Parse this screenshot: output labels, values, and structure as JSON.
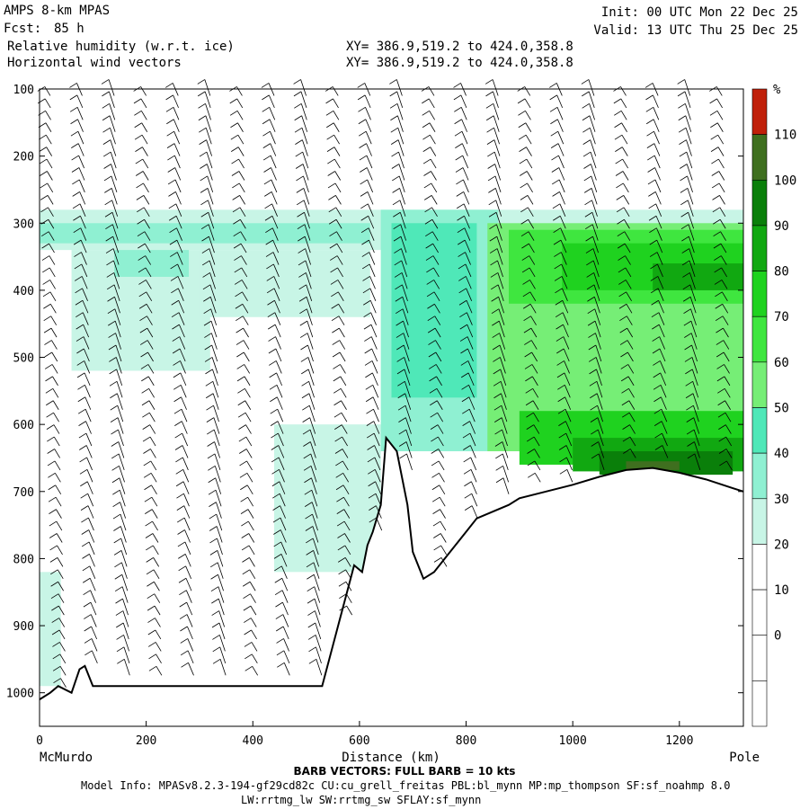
{
  "header": {
    "model": "AMPS 8-km MPAS",
    "fcst_label": "Fcst:",
    "fcst_value": "85 h",
    "field1": "Relative humidity (w.r.t. ice)",
    "field2": "Horizontal wind vectors",
    "init": "Init: 00 UTC Mon 22 Dec 25",
    "valid": "Valid: 13 UTC Thu 25 Dec 25",
    "xy1": "XY= 386.9,519.2 to 424.0,358.8",
    "xy2": "XY= 386.9,519.2 to 424.0,358.8"
  },
  "footer": {
    "barb_note": "BARB VECTORS: FULL BARB = 10 kts",
    "model_info_1": "Model Info: MPASv8.2.3-194-gf29cd82c CU:cu_grell_freitas PBL:bl_mynn MP:mp_thompson SF:sf_noahmp 8.0",
    "model_info_2": "LW:rrtmg_lw SW:rrtmg_sw SFLAY:sf_mynn"
  },
  "colors": {
    "rh_30": "#c8f5e6",
    "rh_40": "#8ff0d2",
    "rh_50": "#4fe8b8",
    "rh_60": "#76ee76",
    "rh_70": "#3fe63f",
    "rh_80": "#1fd21f",
    "rh_90": "#11a811",
    "rh_100": "#0a7f0a",
    "rh_110": "#3f6f1f",
    "rh_top": "#c0200a",
    "terrain_line": "#000000"
  },
  "chart_data": {
    "type": "heatmap",
    "title": "Relative humidity (w.r.t. ice)",
    "xlabel": "Distance (km)",
    "ylabel": "",
    "x_start_label": "McMurdo",
    "x_end_label": "Pole",
    "xlim": [
      0,
      1320
    ],
    "ylim": [
      1050,
      100
    ],
    "x_ticks": [
      "0",
      "200",
      "400",
      "600",
      "800",
      "1000",
      "1200"
    ],
    "y_ticks": [
      "100",
      "200",
      "300",
      "400",
      "500",
      "600",
      "700",
      "800",
      "900",
      "1000"
    ],
    "colorbar": {
      "unit": "%",
      "labels": [
        "110",
        "100",
        "90",
        "80",
        "70",
        "60",
        "50",
        "40",
        "30",
        "20",
        "10",
        "0"
      ],
      "bands": [
        "#c0200a",
        "#3f6f1f",
        "#0a7f0a",
        "#11a811",
        "#1fd21f",
        "#3fe63f",
        "#76ee76",
        "#4fe8b8",
        "#8ff0d2",
        "#c8f5e6",
        "#ffffff",
        "#ffffff",
        "#ffffff",
        "#ffffff"
      ]
    },
    "terrain_pressure": [
      [
        0,
        1010
      ],
      [
        20,
        1000
      ],
      [
        35,
        990
      ],
      [
        60,
        1000
      ],
      [
        75,
        965
      ],
      [
        85,
        960
      ],
      [
        100,
        990
      ],
      [
        300,
        990
      ],
      [
        420,
        990
      ],
      [
        530,
        990
      ],
      [
        560,
        900
      ],
      [
        590,
        810
      ],
      [
        605,
        820
      ],
      [
        615,
        780
      ],
      [
        625,
        760
      ],
      [
        640,
        720
      ],
      [
        650,
        620
      ],
      [
        670,
        640
      ],
      [
        690,
        720
      ],
      [
        700,
        790
      ],
      [
        720,
        830
      ],
      [
        740,
        820
      ],
      [
        760,
        800
      ],
      [
        780,
        780
      ],
      [
        800,
        760
      ],
      [
        820,
        740
      ],
      [
        850,
        730
      ],
      [
        880,
        720
      ],
      [
        900,
        710
      ],
      [
        950,
        700
      ],
      [
        1000,
        690
      ],
      [
        1050,
        678
      ],
      [
        1100,
        668
      ],
      [
        1150,
        665
      ],
      [
        1200,
        672
      ],
      [
        1250,
        682
      ],
      [
        1300,
        695
      ],
      [
        1320,
        700
      ]
    ],
    "rh_regions": [
      {
        "rh": 30,
        "x0": 0,
        "x1": 1320,
        "p_top": 280,
        "p_bot": 340
      },
      {
        "rh": 40,
        "x0": 0,
        "x1": 620,
        "p_top": 300,
        "p_bot": 330
      },
      {
        "rh": 30,
        "x0": 60,
        "x1": 320,
        "p_top": 340,
        "p_bot": 520
      },
      {
        "rh": 40,
        "x0": 140,
        "x1": 280,
        "p_top": 340,
        "p_bot": 380
      },
      {
        "rh": 30,
        "x0": 300,
        "x1": 620,
        "p_top": 340,
        "p_bot": 440
      },
      {
        "rh": 30,
        "x0": 0,
        "x1": 40,
        "p_top": 820,
        "p_bot": 990
      },
      {
        "rh": 30,
        "x0": 440,
        "x1": 640,
        "p_top": 600,
        "p_bot": 820
      },
      {
        "rh": 40,
        "x0": 640,
        "x1": 860,
        "p_top": 280,
        "p_bot": 640
      },
      {
        "rh": 50,
        "x0": 660,
        "x1": 820,
        "p_top": 300,
        "p_bot": 560
      },
      {
        "rh": 60,
        "x0": 840,
        "x1": 1320,
        "p_top": 300,
        "p_bot": 640
      },
      {
        "rh": 70,
        "x0": 880,
        "x1": 1320,
        "p_top": 310,
        "p_bot": 420
      },
      {
        "rh": 80,
        "x0": 980,
        "x1": 1320,
        "p_top": 330,
        "p_bot": 400
      },
      {
        "rh": 90,
        "x0": 1150,
        "x1": 1320,
        "p_top": 360,
        "p_bot": 400
      },
      {
        "rh": 80,
        "x0": 900,
        "x1": 1320,
        "p_top": 580,
        "p_bot": 660
      },
      {
        "rh": 90,
        "x0": 1000,
        "x1": 1320,
        "p_top": 620,
        "p_bot": 670
      },
      {
        "rh": 100,
        "x0": 1050,
        "x1": 1300,
        "p_top": 640,
        "p_bot": 675
      },
      {
        "rh": 110,
        "x0": 1100,
        "x1": 1200,
        "p_top": 655,
        "p_bot": 668
      }
    ],
    "wind_columns_km": [
      20,
      80,
      140,
      200,
      260,
      320,
      380,
      440,
      500,
      560,
      620,
      680,
      740,
      800,
      860,
      920,
      980,
      1040,
      1100,
      1160,
      1220,
      1280
    ]
  }
}
